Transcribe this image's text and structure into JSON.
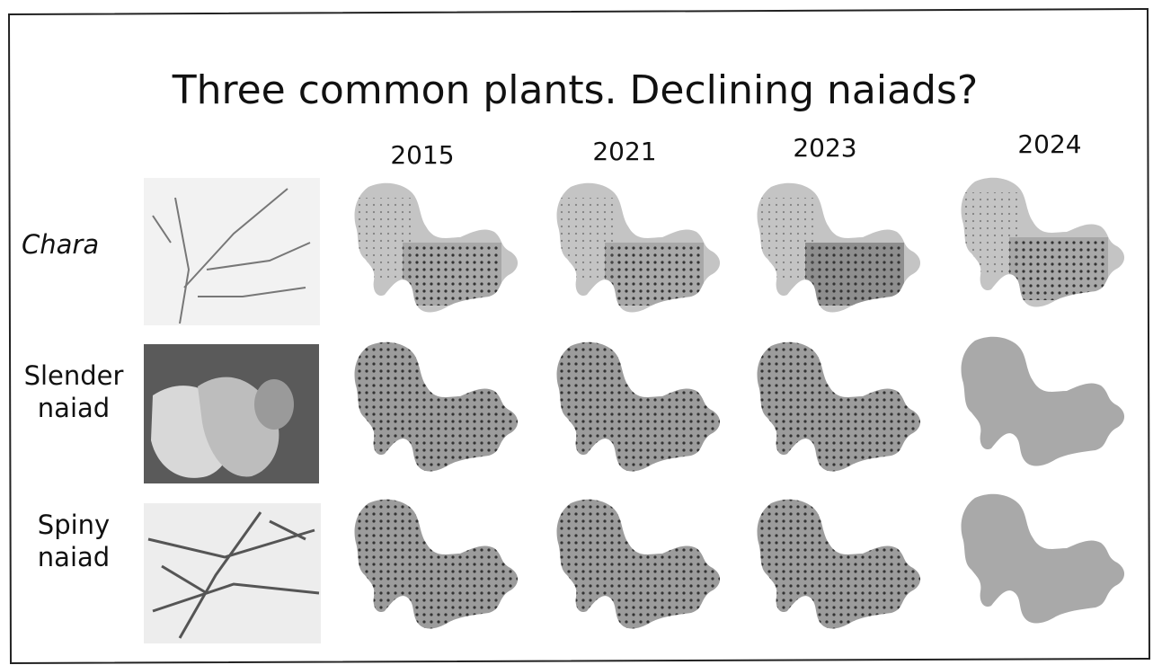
{
  "title": "Three common plants. Declining naiads?",
  "columns": [
    "2015",
    "2021",
    "2023",
    "2024"
  ],
  "rows": [
    {
      "label": "Chara"
    },
    {
      "label": "Slender naiad"
    },
    {
      "label": "Spiny naiad"
    }
  ]
}
